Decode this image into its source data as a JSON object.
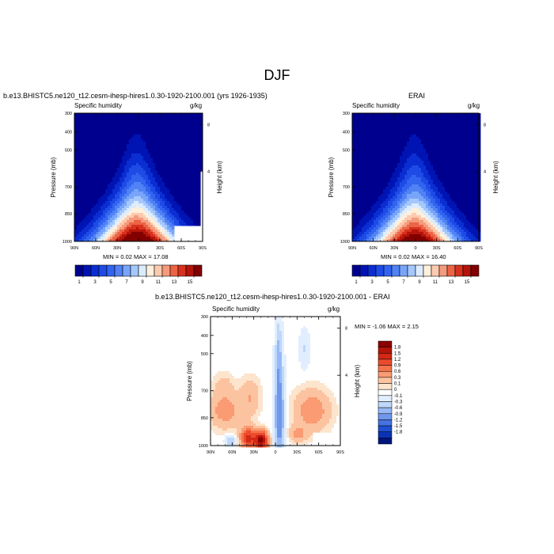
{
  "figure_title": "DJF",
  "panels": [
    {
      "title": "b.e13.BHISTC5.ne120_t12.cesm-ihesp-hires1.0.30-1920-2100.001 (yrs 1926-1935)",
      "left_string": "Specific humidity",
      "right_string": "g/kg",
      "min_label": "MIN =",
      "min_value": "0.02",
      "max_label": "MAX =",
      "max_value": "17.08"
    },
    {
      "title": "ERAI",
      "left_string": "Specific humidity",
      "right_string": "g/kg",
      "min_label": "MIN =",
      "min_value": "0.02",
      "max_label": "MAX =",
      "max_value": "16.40"
    },
    {
      "title": "b.e13.BHISTC5.ne120_t12.cesm-ihesp-hires1.0.30-1920-2100.001 - ERAI",
      "left_string": "Specific humidity",
      "right_string": "g/kg",
      "min_label": "MIN =",
      "min_value": "-1.06",
      "max_label": "MAX =",
      "max_value": "2.15"
    }
  ],
  "chart_data": [
    {
      "type": "heatmap",
      "title": "b.e13.BHISTC5.ne120_t12.cesm-ihesp-hires1.0.30-1920-2100.001 (yrs 1926-1935)",
      "xlabel": "",
      "ylabel": "Pressure (mb)",
      "y2label": "Height (km)",
      "x_ticks": [
        "90N",
        "60N",
        "30N",
        "0",
        "30S",
        "60S",
        "90S"
      ],
      "x_range": [
        90,
        -90
      ],
      "y_ticks": [
        300,
        400,
        500,
        700,
        850,
        1000
      ],
      "y_range": [
        1000,
        300
      ],
      "y2_ticks": [
        8,
        4
      ],
      "contour_levels": [
        1,
        2,
        3,
        4,
        5,
        6,
        7,
        8,
        9,
        10,
        11,
        12,
        13,
        14,
        15,
        16
      ],
      "min": 0.02,
      "max": 17.08,
      "peak_latitude": 0,
      "peak_value": 17.08
    },
    {
      "type": "heatmap",
      "title": "ERAI",
      "xlabel": "",
      "ylabel": "Pressure (mb)",
      "y2label": "Height (km)",
      "x_ticks": [
        "90N",
        "60N",
        "30N",
        "0",
        "30S",
        "60S",
        "90S"
      ],
      "x_range": [
        90,
        -90
      ],
      "y_ticks": [
        300,
        400,
        500,
        700,
        850,
        1000
      ],
      "y_range": [
        1000,
        300
      ],
      "y2_ticks": [
        8,
        4
      ],
      "contour_levels": [
        1,
        2,
        3,
        4,
        5,
        6,
        7,
        8,
        9,
        10,
        11,
        12,
        13,
        14,
        15,
        16
      ],
      "min": 0.02,
      "max": 16.4,
      "peak_latitude": 0,
      "peak_value": 16.4
    },
    {
      "type": "heatmap",
      "title": "b.e13.BHISTC5.ne120_t12.cesm-ihesp-hires1.0.30-1920-2100.001 - ERAI",
      "xlabel": "",
      "ylabel": "Pressure (mb)",
      "y2label": "Height (km)",
      "x_ticks": [
        "90N",
        "60N",
        "30N",
        "0",
        "30S",
        "60S",
        "90S"
      ],
      "x_range": [
        90,
        -90
      ],
      "y_ticks": [
        300,
        400,
        500,
        700,
        850,
        1000
      ],
      "y_range": [
        1000,
        300
      ],
      "y2_ticks": [
        8,
        4
      ],
      "min": -1.06,
      "max": 2.15
    }
  ],
  "colorbar_main": {
    "labels": [
      "1",
      "3",
      "5",
      "7",
      "9",
      "11",
      "13",
      "15"
    ],
    "colors": [
      "#00008f",
      "#0014b4",
      "#0a2ed2",
      "#1e4be6",
      "#3264f0",
      "#5082f5",
      "#78a5fa",
      "#a5c8fc",
      "#dcecff",
      "#fff0dc",
      "#fccaaf",
      "#f59b7c",
      "#eb6446",
      "#d7321e",
      "#b4140a",
      "#820000"
    ]
  },
  "colorbar_diff": {
    "labels": [
      "1.8",
      "1.5",
      "1.2",
      "0.9",
      "0.6",
      "0.3",
      "0.1",
      "0",
      "-0.1",
      "-0.3",
      "-0.6",
      "-0.9",
      "-1.2",
      "-1.5",
      "-1.8"
    ],
    "colors": [
      "#8c0000",
      "#b4140a",
      "#d22814",
      "#eb4b2d",
      "#f5734b",
      "#fa9b73",
      "#fcc3a0",
      "#fde4cd",
      "#ffffff",
      "#e1eeff",
      "#bed7fa",
      "#96b9f5",
      "#6e96eb",
      "#4673e1",
      "#1e50d2",
      "#0a32b4",
      "#00147d"
    ]
  }
}
